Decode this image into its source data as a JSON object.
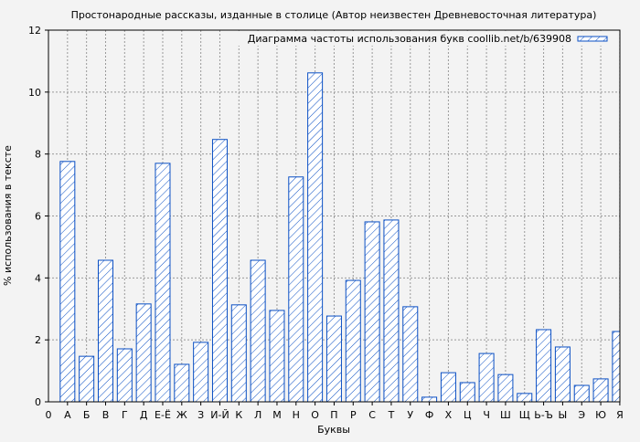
{
  "chart_data": {
    "type": "bar",
    "title": "Простонародные рассказы, изданные в столице (Автор неизвестен Древневосточная литература)",
    "xlabel": "Буквы",
    "ylabel": "% использования в тексте",
    "legend": {
      "label": "Диаграмма частоты использования букв coollib.net/b/639908",
      "placement": "top-right"
    },
    "x_origin_label": "0",
    "categories": [
      "А",
      "Б",
      "В",
      "Г",
      "Д",
      "Е-Ё",
      "Ж",
      "З",
      "И-Й",
      "К",
      "Л",
      "М",
      "Н",
      "О",
      "П",
      "Р",
      "С",
      "Т",
      "У",
      "Ф",
      "Х",
      "Ц",
      "Ч",
      "Ш",
      "Щ",
      "Ь-Ъ",
      "Ы",
      "Э",
      "Ю",
      "Я"
    ],
    "values": [
      7.76,
      1.47,
      4.57,
      1.71,
      3.16,
      7.7,
      1.21,
      1.92,
      8.47,
      3.13,
      4.57,
      2.95,
      7.26,
      10.62,
      2.77,
      3.92,
      5.81,
      5.87,
      3.07,
      0.15,
      0.94,
      0.62,
      1.56,
      0.88,
      0.27,
      2.33,
      1.77,
      0.53,
      0.74,
      2.27
    ],
    "ylim": [
      0,
      12
    ],
    "yticks": [
      0,
      2,
      4,
      6,
      8,
      10,
      12
    ],
    "grid": true,
    "colors": {
      "bar_stroke": "#0a4fc4",
      "bar_fill": "#ffffff",
      "grid": "#999999",
      "background": "#f3f3f3"
    }
  }
}
